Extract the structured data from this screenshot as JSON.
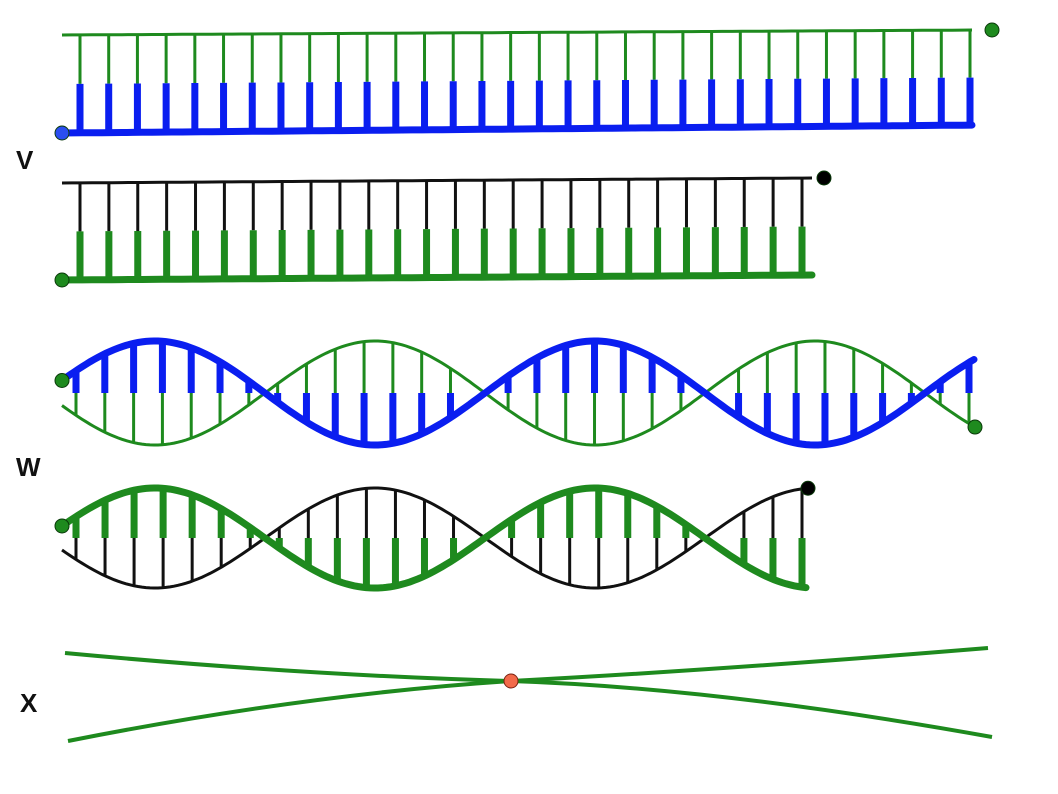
{
  "labels": {
    "v": "V",
    "w": "W",
    "x": "X"
  },
  "colors": {
    "green": "#1e8a1e",
    "blue": "#0a1ef0",
    "black": "#111111",
    "endpoint_green": "#1e8a1e",
    "endpoint_blue": "#2a4df0",
    "endpoint_black": "#000000",
    "crossing_point": "#f26a4a"
  },
  "panels": [
    {
      "id": "V-top",
      "kind": "straight-ladder",
      "thin_strand": "green",
      "thick_strand": "blue",
      "rungs": 32
    },
    {
      "id": "V-bottom",
      "kind": "straight-ladder",
      "thin_strand": "black",
      "thick_strand": "green",
      "rungs": 26
    },
    {
      "id": "W-top",
      "kind": "twisted-ladder",
      "thin_strand": "green",
      "thick_strand": "blue",
      "rungs": 32
    },
    {
      "id": "W-bottom",
      "kind": "twisted-ladder",
      "thin_strand": "black",
      "thick_strand": "green",
      "rungs": 26
    },
    {
      "id": "X",
      "kind": "crossing-lines",
      "strand": "green"
    }
  ]
}
